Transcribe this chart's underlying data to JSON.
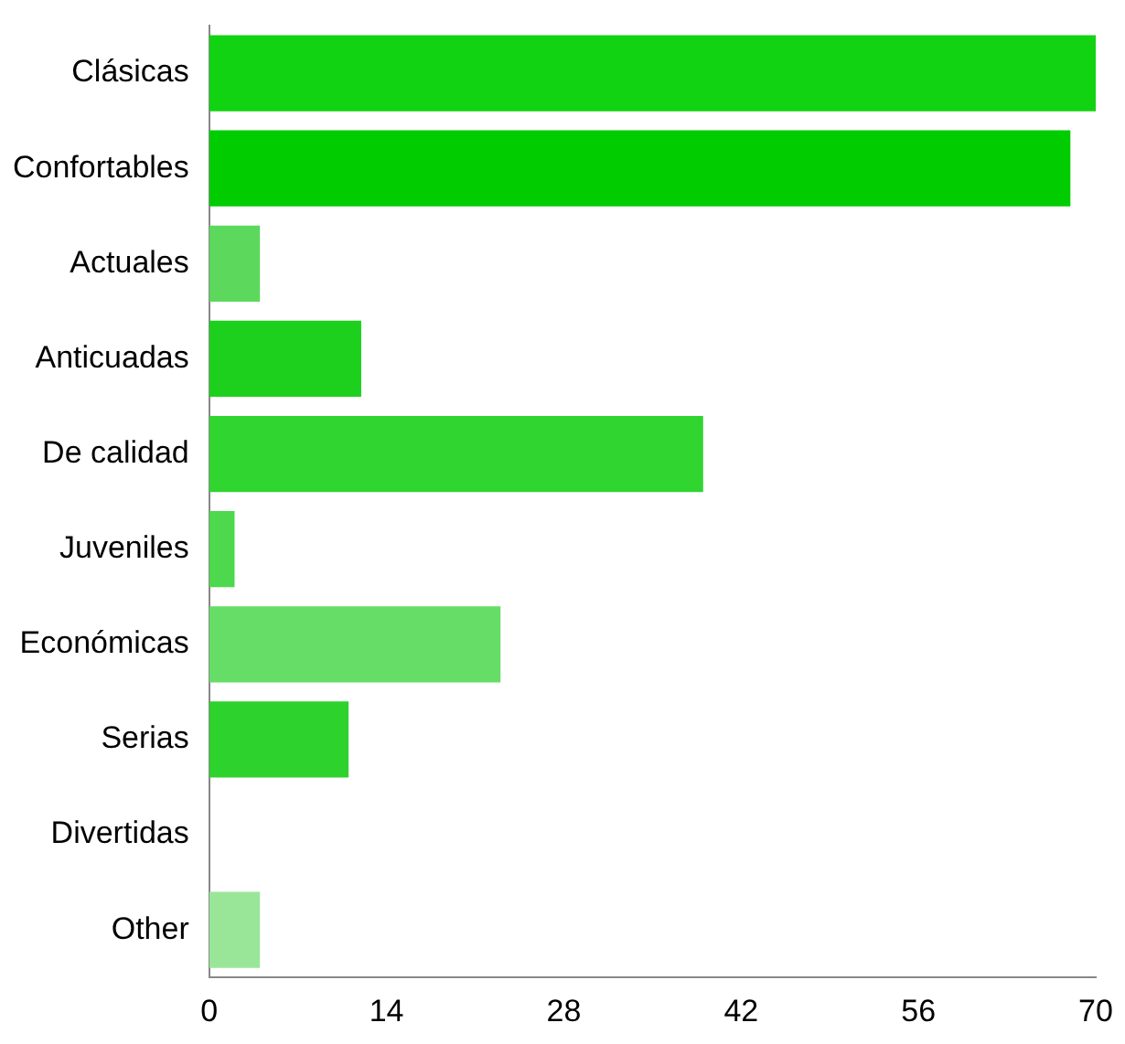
{
  "chart_data": {
    "type": "bar",
    "orientation": "horizontal",
    "categories": [
      "Clásicas",
      "Confortables",
      "Actuales",
      "Anticuadas",
      "De calidad",
      "Juveniles",
      "Económicas",
      "Serias",
      "Divertidas",
      "Other"
    ],
    "values": [
      70,
      68,
      4,
      12,
      39,
      2,
      23,
      11,
      0,
      4
    ],
    "colors": [
      "#12d312",
      "#00cc00",
      "#5cd85c",
      "#1dd01d",
      "#30d530",
      "#4dd84d",
      "#66dd66",
      "#2dd22d",
      "#40d540",
      "#99e699"
    ],
    "xlim": [
      0,
      70
    ],
    "xticks": [
      0,
      14,
      28,
      42,
      56,
      70
    ],
    "grid": false
  }
}
